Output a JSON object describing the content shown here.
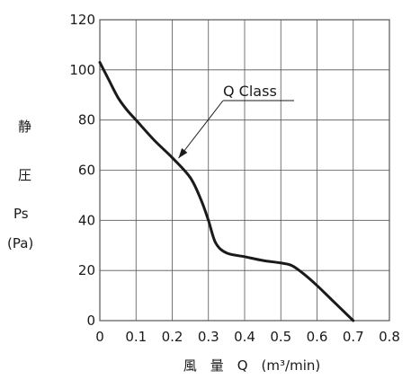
{
  "chart_data": {
    "type": "line",
    "title": "",
    "xlabel": "風　量　Q　(m³/min)",
    "ylabel_lines": [
      "静",
      "圧",
      "Ps",
      "(Pa)"
    ],
    "xlim": [
      0,
      0.8
    ],
    "ylim": [
      0,
      120
    ],
    "x_ticks": [
      0,
      0.1,
      0.2,
      0.3,
      0.4,
      0.5,
      0.6,
      0.7,
      0.8
    ],
    "x_tick_labels": [
      "0",
      "0.1",
      "0.2",
      "0.3",
      "0.4",
      "0.5",
      "0.6",
      "0.7",
      "0.8"
    ],
    "y_ticks": [
      0,
      20,
      40,
      60,
      80,
      100,
      120
    ],
    "y_tick_labels": [
      "0",
      "20",
      "40",
      "60",
      "80",
      "100",
      "120"
    ],
    "grid": true,
    "legend": "none",
    "series": [
      {
        "name": "Q Class",
        "color": "#1a1a1a",
        "x": [
          0,
          0.025,
          0.05,
          0.075,
          0.1,
          0.15,
          0.2,
          0.25,
          0.28,
          0.3,
          0.32,
          0.35,
          0.4,
          0.45,
          0.5,
          0.53,
          0.56,
          0.6,
          0.65,
          0.7
        ],
        "y": [
          103,
          96,
          89,
          84,
          80,
          72,
          65,
          57,
          48,
          40,
          31,
          27,
          25.5,
          24,
          23,
          22,
          19,
          14,
          7,
          0
        ]
      }
    ],
    "annotations": [
      {
        "text": "Q Class",
        "points_to": [
          0.21,
          63
        ]
      }
    ]
  },
  "colors": {
    "line": "#1a1a1a",
    "grid": "#555555",
    "text": "#1a1a1a",
    "background": "#ffffff"
  }
}
